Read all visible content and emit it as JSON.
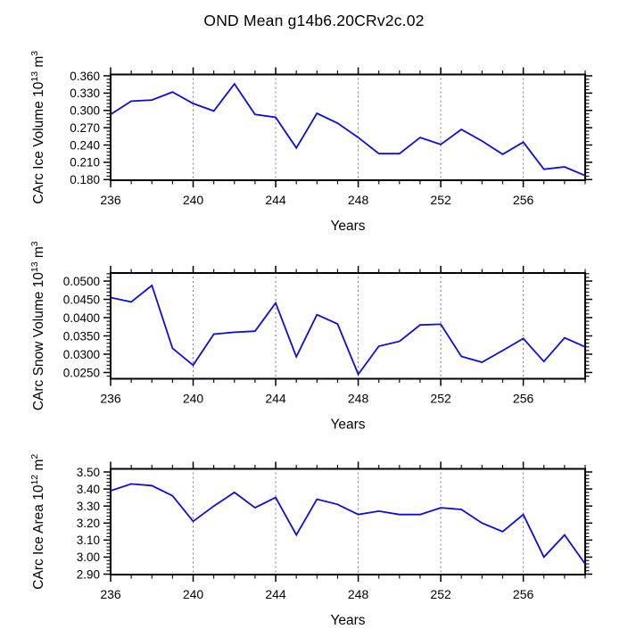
{
  "page": {
    "title": "OND Mean g14b6.20CRv2c.02",
    "background": "#ffffff"
  },
  "colors": {
    "line": "#0d0ddb",
    "grid": "#7d7d7d",
    "axis": "#000000"
  },
  "chart_data": [
    {
      "type": "line",
      "name": "carc-ice-volume",
      "ylabel_text": "CArc Ice Volume 10^13 m^3",
      "ylabel_parts": [
        {
          "t": "CArc Ice Volume 10"
        },
        {
          "t": "13",
          "sup": true
        },
        {
          "t": " m"
        },
        {
          "t": "3",
          "sup": true
        }
      ],
      "xlabel": "Years",
      "x": [
        236,
        237,
        238,
        239,
        240,
        241,
        242,
        243,
        244,
        245,
        246,
        247,
        248,
        249,
        250,
        251,
        252,
        253,
        254,
        255,
        256,
        257,
        258,
        259
      ],
      "values": [
        0.293,
        0.316,
        0.318,
        0.332,
        0.312,
        0.299,
        0.346,
        0.293,
        0.288,
        0.235,
        0.295,
        0.278,
        0.253,
        0.225,
        0.225,
        0.253,
        0.241,
        0.267,
        0.247,
        0.224,
        0.245,
        0.198,
        0.202,
        0.187
      ],
      "xlim": [
        236,
        259
      ],
      "ylim": [
        0.1789,
        0.3623
      ],
      "xticks": [
        236,
        240,
        244,
        248,
        252,
        256
      ],
      "x_minor_step": 1,
      "yticks": [
        0.18,
        0.21,
        0.24,
        0.27,
        0.3,
        0.33,
        0.36
      ],
      "ytick_labels": [
        "0.180",
        "0.210",
        "0.240",
        "0.270",
        "0.300",
        "0.330",
        "0.360"
      ],
      "y_minor_step": 0.006,
      "grid_x": [
        240,
        244,
        248,
        252,
        256
      ],
      "grid_style": "vertical-dashed",
      "legend": "none"
    },
    {
      "type": "line",
      "name": "carc-snow-volume",
      "ylabel_text": "CArc Snow Volume 10^13 m^3",
      "ylabel_parts": [
        {
          "t": "CArc Snow Volume 10"
        },
        {
          "t": "13",
          "sup": true
        },
        {
          "t": " m"
        },
        {
          "t": "3",
          "sup": true
        }
      ],
      "xlabel": "Years",
      "x": [
        236,
        237,
        238,
        239,
        240,
        241,
        242,
        243,
        244,
        245,
        246,
        247,
        248,
        249,
        250,
        251,
        252,
        253,
        254,
        255,
        256,
        257,
        258,
        259
      ],
      "values": [
        0.0455,
        0.0443,
        0.0488,
        0.0316,
        0.027,
        0.0355,
        0.036,
        0.0363,
        0.044,
        0.0293,
        0.0408,
        0.0383,
        0.0245,
        0.0322,
        0.0335,
        0.038,
        0.0382,
        0.0294,
        0.0278,
        0.031,
        0.0343,
        0.028,
        0.0345,
        0.032
      ],
      "xlim": [
        236,
        259
      ],
      "ylim": [
        0.02329,
        0.0522
      ],
      "xticks": [
        236,
        240,
        244,
        248,
        252,
        256
      ],
      "x_minor_step": 1,
      "yticks": [
        0.025,
        0.03,
        0.035,
        0.04,
        0.045,
        0.05
      ],
      "ytick_labels": [
        "0.0250",
        "0.0300",
        "0.0350",
        "0.0400",
        "0.0450",
        "0.0500"
      ],
      "y_minor_step": 0.001,
      "grid_x": [
        240,
        244,
        248,
        252,
        256
      ],
      "grid_style": "vertical-dashed",
      "legend": "none"
    },
    {
      "type": "line",
      "name": "carc-ice-area",
      "ylabel_text": "CArc Ice Area 10^12 m^2",
      "ylabel_parts": [
        {
          "t": "CArc Ice Area 10"
        },
        {
          "t": "12",
          "sup": true
        },
        {
          "t": " m"
        },
        {
          "t": "2",
          "sup": true
        }
      ],
      "xlabel": "Years",
      "x": [
        236,
        237,
        238,
        239,
        240,
        241,
        242,
        243,
        244,
        245,
        246,
        247,
        248,
        249,
        250,
        251,
        252,
        253,
        254,
        255,
        256,
        257,
        258,
        259
      ],
      "values": [
        3.39,
        3.43,
        3.42,
        3.36,
        3.21,
        3.3,
        3.38,
        3.29,
        3.35,
        3.13,
        3.34,
        3.31,
        3.25,
        3.27,
        3.25,
        3.25,
        3.29,
        3.28,
        3.2,
        3.15,
        3.25,
        3.0,
        3.13,
        2.96
      ],
      "xlim": [
        236,
        259
      ],
      "ylim": [
        2.8974,
        3.5183
      ],
      "xticks": [
        236,
        240,
        244,
        248,
        252,
        256
      ],
      "x_minor_step": 1,
      "yticks": [
        2.9,
        3.0,
        3.1,
        3.2,
        3.3,
        3.4,
        3.5
      ],
      "ytick_labels": [
        "2.90",
        "3.00",
        "3.10",
        "3.20",
        "3.30",
        "3.40",
        "3.50"
      ],
      "y_minor_step": 0.02,
      "grid_x": [
        240,
        244,
        248,
        252,
        256
      ],
      "grid_style": "vertical-dashed",
      "legend": "none"
    }
  ]
}
